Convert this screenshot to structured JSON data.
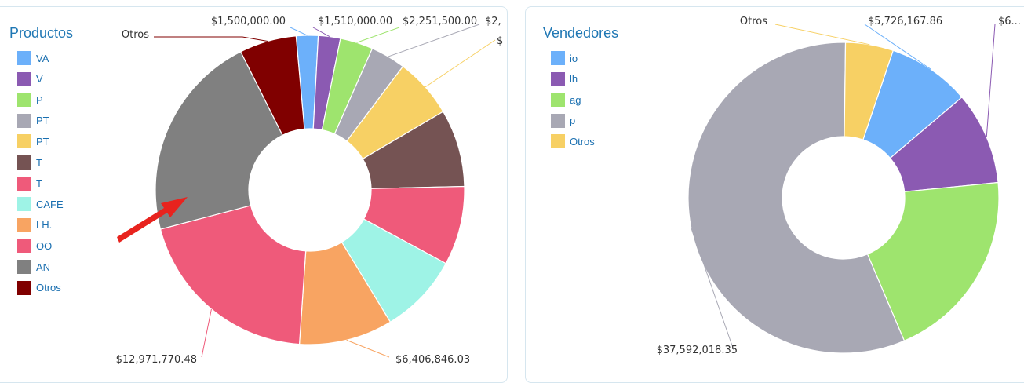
{
  "chart_data": [
    {
      "type": "pie",
      "donut": true,
      "title": "Productos",
      "legend": [
        "VA",
        "V",
        "P",
        "PT",
        "PT",
        "T",
        "T",
        "CAFE",
        "LH.",
        "OO",
        "AN",
        "Otros"
      ],
      "slices": [
        {
          "label": "VA",
          "value": 1500000.0,
          "color": "#6cb0fa"
        },
        {
          "label": "V",
          "value": 1510000.0,
          "color": "#8b5ab2"
        },
        {
          "label": "P",
          "value": 2251500.0,
          "color": "#9ee46e"
        },
        {
          "label": "PT",
          "value": 2400000.0,
          "color": "#a8a8b4"
        },
        {
          "label": "PT",
          "value": 4100000.0,
          "color": "#f7d064"
        },
        {
          "label": "T",
          "value": 5300000.0,
          "color": "#755353"
        },
        {
          "label": "T",
          "value": 5400000.0,
          "color": "#ef5a7a"
        },
        {
          "label": "CAFE",
          "value": 5500000.0,
          "color": "#9ef3e6"
        },
        {
          "label": "LH.",
          "value": 6406846.03,
          "color": "#f8a462"
        },
        {
          "label": "OO",
          "value": 12971770.48,
          "color": "#ef5a7a"
        },
        {
          "label": "AN",
          "value": 14200000.0,
          "color": "#808080"
        },
        {
          "label": "Otros",
          "value": 3900000.0,
          "color": "#800000"
        }
      ],
      "data_labels": [
        {
          "slice": "Otros",
          "text": "Otros"
        },
        {
          "slice": "VA",
          "text": "$1,500,000.00"
        },
        {
          "slice": "V",
          "text": "$1,510,000.00"
        },
        {
          "slice": "P",
          "text": "$2,251,500.00"
        },
        {
          "slice": "PT",
          "text": "$2,"
        },
        {
          "slice": "PT2",
          "text": "$"
        },
        {
          "slice": "OO",
          "text": "$12,971,770.48"
        },
        {
          "slice": "LH.",
          "text": "$6,406,846.03"
        }
      ],
      "annotation": {
        "type": "arrow",
        "color": "#e8231e",
        "target": "AN"
      }
    },
    {
      "type": "pie",
      "donut": true,
      "title": "Vendedores",
      "legend": [
        "io",
        "lh",
        "ag",
        "p",
        "Otros"
      ],
      "slices": [
        {
          "label": "io",
          "value": 5726167.86,
          "color": "#6cb0fa"
        },
        {
          "label": "lh",
          "value": 6400000.0,
          "color": "#8b5ab2"
        },
        {
          "label": "ag",
          "value": 13400000.0,
          "color": "#9ee46e"
        },
        {
          "label": "p",
          "value": 37592018.35,
          "color": "#a8a8b4"
        },
        {
          "label": "Otros",
          "value": 3300000.0,
          "color": "#f7d064"
        }
      ],
      "data_labels": [
        {
          "slice": "Otros",
          "text": "Otros"
        },
        {
          "slice": "io",
          "text": "$5,726,167.86"
        },
        {
          "slice": "lh",
          "text": "$6..."
        },
        {
          "slice": "p",
          "text": "$37,592,018.35"
        }
      ]
    }
  ]
}
